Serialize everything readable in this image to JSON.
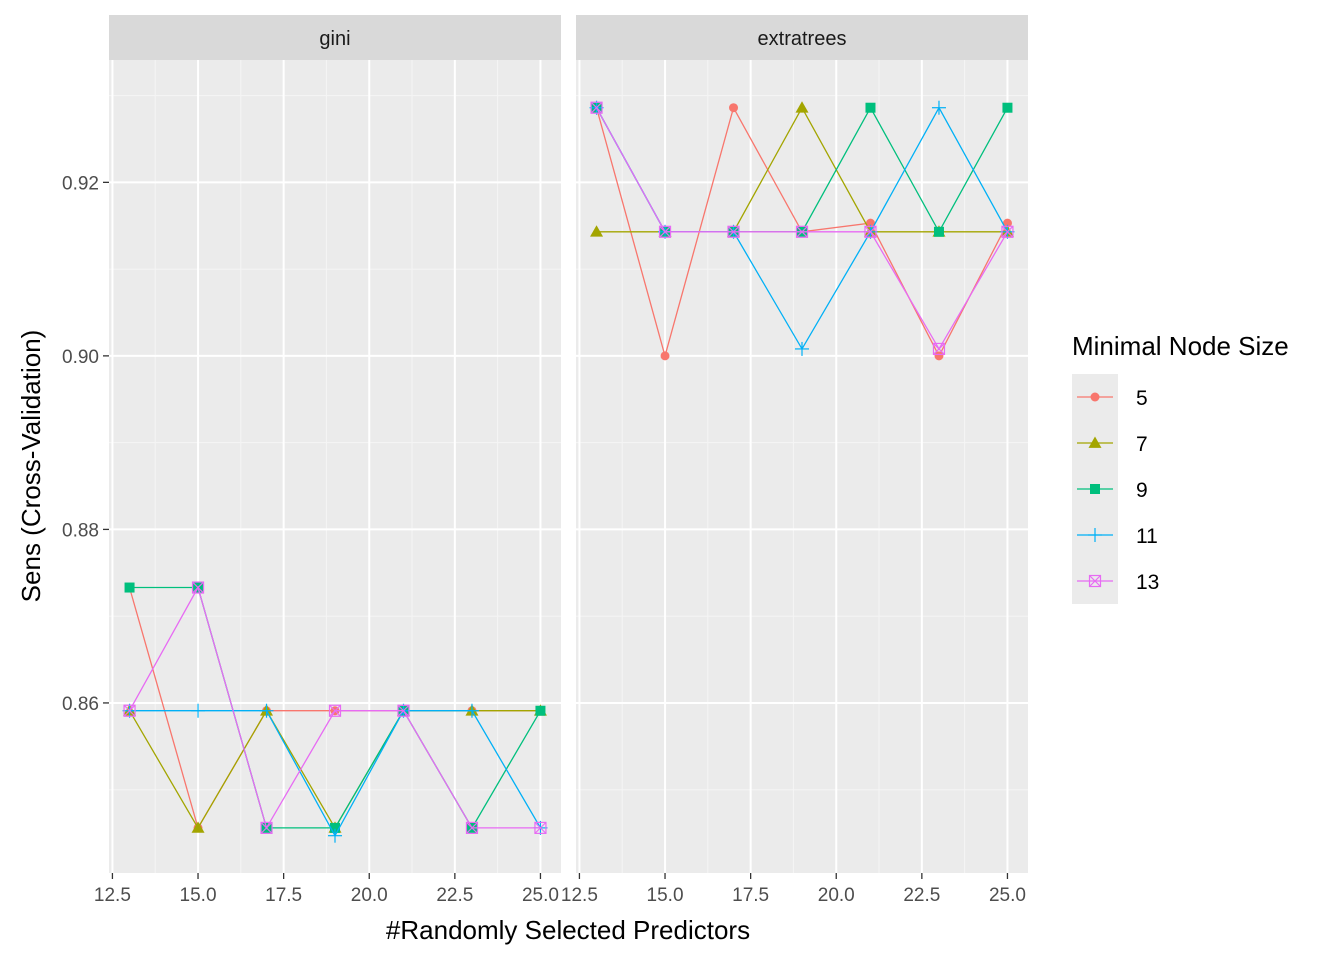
{
  "chart_data": {
    "type": "line",
    "facet_labels": [
      "gini",
      "extratrees"
    ],
    "xlabel": "#Randomly Selected Predictors",
    "ylabel": "Sens (Cross-Validation)",
    "x": [
      13,
      15,
      17,
      19,
      21,
      23,
      25
    ],
    "xlim": [
      12.4,
      25.6
    ],
    "ylim": [
      0.8404,
      0.9341
    ],
    "x_ticks": [
      12.5,
      15.0,
      17.5,
      20.0,
      22.5,
      25.0
    ],
    "x_tick_labels": [
      "12.5",
      "15.0",
      "17.5",
      "20.0",
      "22.5",
      "25.0"
    ],
    "y_ticks": [
      0.86,
      0.88,
      0.9,
      0.92
    ],
    "y_tick_labels": [
      "0.86",
      "0.88",
      "0.90",
      "0.92"
    ],
    "grid": true,
    "legend": {
      "title": "Minimal Node Size",
      "position": "right",
      "entries": [
        "5",
        "7",
        "9",
        "11",
        "13"
      ]
    },
    "series": [
      {
        "name": "5",
        "color": "#F8766D",
        "shape": "circle",
        "facets": [
          [
            0.8733,
            0.8456,
            0.8591,
            0.8591,
            0.8591,
            0.8591,
            0.8591
          ],
          [
            0.9286,
            0.9,
            0.9286,
            0.9143,
            0.9153,
            0.9,
            0.9153
          ]
        ]
      },
      {
        "name": "7",
        "color": "#A3A500",
        "shape": "triangle",
        "facets": [
          [
            0.8591,
            0.8456,
            0.8591,
            0.8456,
            0.8591,
            0.8591,
            0.8591
          ],
          [
            0.9143,
            0.9143,
            0.9143,
            0.9286,
            0.9143,
            0.9143,
            0.9143
          ]
        ]
      },
      {
        "name": "9",
        "color": "#00BF7D",
        "shape": "square",
        "facets": [
          [
            0.8733,
            0.8733,
            0.8456,
            0.8456,
            0.8591,
            0.8456,
            0.8591
          ],
          [
            0.9286,
            0.9143,
            0.9143,
            0.9143,
            0.9286,
            0.9143,
            0.9286
          ]
        ]
      },
      {
        "name": "11",
        "color": "#00B0F6",
        "shape": "plus",
        "facets": [
          [
            0.8591,
            0.8591,
            0.8591,
            0.8447,
            0.8591,
            0.8591,
            0.8456
          ],
          [
            0.9286,
            0.9143,
            0.9143,
            0.9008,
            0.9143,
            0.9286,
            0.9143
          ]
        ]
      },
      {
        "name": "13",
        "color": "#E76BF3",
        "shape": "square-cross",
        "facets": [
          [
            0.8591,
            0.8733,
            0.8456,
            0.8591,
            0.8591,
            0.8456,
            0.8456
          ],
          [
            0.9286,
            0.9143,
            0.9143,
            0.9143,
            0.9143,
            0.9008,
            0.9143
          ]
        ]
      }
    ]
  }
}
